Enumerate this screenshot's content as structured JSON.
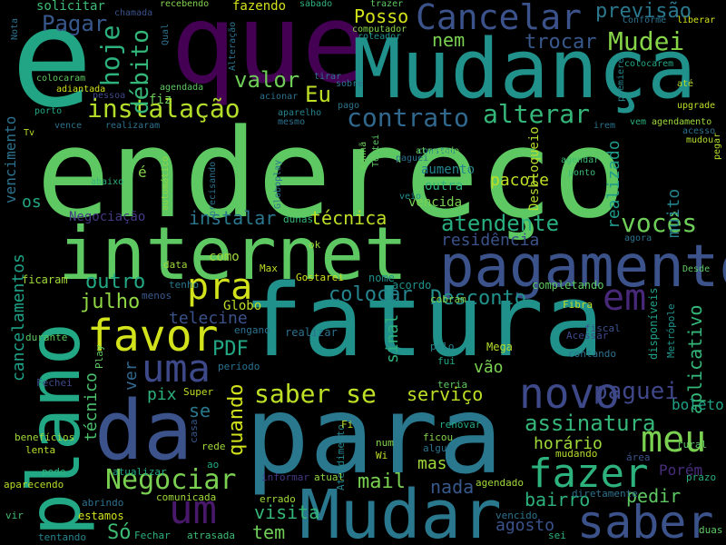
{
  "background": "#000000",
  "words": [
    {
      "text": "endereço",
      "color": "#5ec962"
    },
    {
      "text": "fatura",
      "color": "#21918c"
    },
    {
      "text": "para",
      "color": "#2a788e"
    },
    {
      "text": "que",
      "color": "#440154"
    },
    {
      "text": "e",
      "color": "#21a585"
    },
    {
      "text": "Mudança",
      "color": "#21918c"
    },
    {
      "text": "internet",
      "color": "#5ec962"
    },
    {
      "text": "plano",
      "color": "#22a884"
    },
    {
      "text": "da",
      "color": "#3b528b"
    },
    {
      "text": "pagamento",
      "color": "#3b528b"
    },
    {
      "text": "Mudar",
      "color": "#2a788e"
    },
    {
      "text": "saber",
      "color": "#3b528b"
    },
    {
      "text": "Cancelar",
      "color": "#3b528b"
    },
    {
      "text": "favor",
      "color": "#d2e21b"
    },
    {
      "text": "uma",
      "color": "#3e4989"
    },
    {
      "text": "novo",
      "color": "#3e4989"
    },
    {
      "text": "fazer",
      "color": "#2db27d"
    },
    {
      "text": "meu",
      "color": "#7ad151"
    },
    {
      "text": "um",
      "color": "#48186a"
    },
    {
      "text": "pra",
      "color": "#d2e21b"
    },
    {
      "text": "em",
      "color": "#482878"
    },
    {
      "text": "Negociar",
      "color": "#7ad151"
    },
    {
      "text": "saber se",
      "color": "#bddf26"
    },
    {
      "text": "instalação",
      "color": "#b5de2b"
    },
    {
      "text": "contrato",
      "color": "#31688e"
    },
    {
      "text": "alterar",
      "color": "#35b779"
    },
    {
      "text": "Mudei",
      "color": "#86d549"
    },
    {
      "text": "hoje",
      "color": "#2db27d"
    },
    {
      "text": "débito",
      "color": "#35b779"
    },
    {
      "text": "vocês",
      "color": "#6ece58"
    },
    {
      "text": "atendente",
      "color": "#29af7f"
    },
    {
      "text": "assinatura",
      "color": "#35b779"
    },
    {
      "text": "paguei",
      "color": "#3f4788"
    },
    {
      "text": "Pagar",
      "color": "#38588c"
    },
    {
      "text": "valor",
      "color": "#6ece58"
    },
    {
      "text": "Eu",
      "color": "#bddf26"
    },
    {
      "text": "Posso",
      "color": "#d2e21b"
    },
    {
      "text": "nem",
      "color": "#7ad151"
    },
    {
      "text": "trocar",
      "color": "#38588c"
    },
    {
      "text": "previsão",
      "color": "#2a788e"
    },
    {
      "text": "instalar",
      "color": "#2a788e"
    },
    {
      "text": "técnica",
      "color": "#bddf26"
    },
    {
      "text": "colocar",
      "color": "#25848e"
    },
    {
      "text": "Desconto",
      "color": "#21918c"
    },
    {
      "text": "outro",
      "color": "#22a884"
    },
    {
      "text": "julho",
      "color": "#8fd744"
    },
    {
      "text": "telecine",
      "color": "#3b528b"
    },
    {
      "text": "PDF",
      "color": "#22a884"
    },
    {
      "text": "quando",
      "color": "#d2e21b"
    },
    {
      "text": "serviço",
      "color": "#bddf26"
    },
    {
      "text": "vão",
      "color": "#7ad151"
    },
    {
      "text": "mail",
      "color": "#7ad151"
    },
    {
      "text": "nada",
      "color": "#38588c"
    },
    {
      "text": "mas",
      "color": "#a0da39"
    },
    {
      "text": "horário",
      "color": "#a0da39"
    },
    {
      "text": "visita",
      "color": "#35b779"
    },
    {
      "text": "tem",
      "color": "#6ece58"
    },
    {
      "text": "Só",
      "color": "#3dbc74"
    },
    {
      "text": "bairro",
      "color": "#2db27d"
    },
    {
      "text": "pedir",
      "color": "#5ec962"
    },
    {
      "text": "agosto",
      "color": "#3b528b"
    },
    {
      "text": "residência",
      "color": "#3b528b"
    },
    {
      "text": "realizado",
      "color": "#1f9a8a"
    },
    {
      "text": "pacote",
      "color": "#bddf26"
    },
    {
      "text": "muito",
      "color": "#25848e"
    },
    {
      "text": "aplicativo",
      "color": "#35b779"
    },
    {
      "text": "Porém",
      "color": "#472d7b"
    },
    {
      "text": "cancelamentos",
      "color": "#1fa187"
    },
    {
      "text": "vencimento",
      "color": "#2c728e"
    },
    {
      "text": "técnico",
      "color": "#4ac16d"
    },
    {
      "text": "ver",
      "color": "#31688e"
    },
    {
      "text": "pix",
      "color": "#2db27d"
    },
    {
      "text": "se",
      "color": "#2a788e"
    },
    {
      "text": "como",
      "color": "#9fda3a"
    },
    {
      "text": "sinal",
      "color": "#2db27d"
    },
    {
      "text": "boleto",
      "color": "#1fa187"
    },
    {
      "text": "Globo",
      "color": "#bddf26"
    },
    {
      "text": "fiz",
      "color": "#6ece58"
    },
    {
      "text": "é",
      "color": "#84d44b"
    },
    {
      "text": "os",
      "color": "#22a884"
    },
    {
      "text": "solicitar",
      "color": "#3dbc74"
    },
    {
      "text": "fazendo",
      "color": "#d2e21b"
    },
    {
      "text": "aumento",
      "color": "#25848e"
    },
    {
      "text": "outra",
      "color": "#2db27d"
    },
    {
      "text": "vencida",
      "color": "#7ad151"
    },
    {
      "text": "Desbloqueio",
      "color": "#b5de2b"
    },
    {
      "text": "Negociação",
      "color": "#443983"
    },
    {
      "text": "ficaram",
      "color": "#a0da39"
    },
    {
      "text": "nome",
      "color": "#21918c"
    },
    {
      "text": "acordo",
      "color": "#21918c"
    },
    {
      "text": "completando",
      "color": "#5ec962"
    },
    {
      "text": "cobram",
      "color": "#84d44b"
    },
    {
      "text": "Fibra",
      "color": "#bddf26"
    },
    {
      "text": "disponíveis",
      "color": "#1fa187"
    },
    {
      "text": "Metrópole",
      "color": "#21918c"
    },
    {
      "text": "fiscal",
      "color": "#3b528b"
    },
    {
      "text": "Acessar",
      "color": "#3e4989"
    },
    {
      "text": "contando",
      "color": "#2c728e"
    },
    {
      "text": "Mega",
      "color": "#b5de2b"
    },
    {
      "text": "pelo",
      "color": "#25848e"
    },
    {
      "text": "fui",
      "color": "#22a884"
    },
    {
      "text": "teria",
      "color": "#5ec962"
    },
    {
      "text": "Atendimento",
      "color": "#25848e"
    },
    {
      "text": "renovar",
      "color": "#22a884"
    },
    {
      "text": "ficou",
      "color": "#84d44b"
    },
    {
      "text": "algum",
      "color": "#2c728e"
    },
    {
      "text": "num",
      "color": "#84d44b"
    },
    {
      "text": "Wi",
      "color": "#bddf26"
    },
    {
      "text": "Fi",
      "color": "#bddf26"
    },
    {
      "text": "mudando",
      "color": "#b5de2b"
    },
    {
      "text": "área",
      "color": "#3b528b"
    },
    {
      "text": "prazo",
      "color": "#29af7f"
    },
    {
      "text": "rural",
      "color": "#5ec962"
    },
    {
      "text": "diretamente",
      "color": "#2c728e"
    },
    {
      "text": "agendado",
      "color": "#a0da39"
    },
    {
      "text": "sei",
      "color": "#2db27d"
    },
    {
      "text": "vencido",
      "color": "#2c728e"
    },
    {
      "text": "duas",
      "color": "#5ec962"
    },
    {
      "text": "atualizar",
      "color": "#22a884"
    },
    {
      "text": "informar",
      "color": "#443983"
    },
    {
      "text": "atual",
      "color": "#8fd744"
    },
    {
      "text": "errado",
      "color": "#a0da39"
    },
    {
      "text": "comunicada",
      "color": "#9fda3a"
    },
    {
      "text": "abrindo",
      "color": "#2c728e"
    },
    {
      "text": "Fechar",
      "color": "#2db27d"
    },
    {
      "text": "atrasada",
      "color": "#3dbc74"
    },
    {
      "text": "estamos",
      "color": "#d2e21b"
    },
    {
      "text": "vir",
      "color": "#3dbc74"
    },
    {
      "text": "tentando",
      "color": "#25848e"
    },
    {
      "text": "aparecendo",
      "color": "#b5de2b"
    },
    {
      "text": "pode",
      "color": "#2db27d"
    },
    {
      "text": "lenta",
      "color": "#b5de2b"
    },
    {
      "text": "benefícios",
      "color": "#a0da39"
    },
    {
      "text": "durante",
      "color": "#5ec962"
    },
    {
      "text": "Fechei",
      "color": "#3e4989"
    },
    {
      "text": "Play",
      "color": "#5ec962"
    },
    {
      "text": "Super",
      "color": "#bddf26"
    },
    {
      "text": "período",
      "color": "#2c728e"
    },
    {
      "text": "engano",
      "color": "#2c728e"
    },
    {
      "text": "Max",
      "color": "#bddf26"
    },
    {
      "text": "Gostarei",
      "color": "#d2e21b"
    },
    {
      "text": "tenho",
      "color": "#2a788e"
    },
    {
      "text": "menos",
      "color": "#38588c"
    },
    {
      "text": "data",
      "color": "#9fda3a"
    },
    {
      "text": "ok",
      "color": "#9fda3a"
    },
    {
      "text": "dunas",
      "color": "#35b779"
    },
    {
      "text": "casa",
      "color": "#38588c"
    },
    {
      "text": "rede",
      "color": "#9fda3a"
    },
    {
      "text": "ao",
      "color": "#22a884"
    },
    {
      "text": "realizar",
      "color": "#2c728e"
    },
    {
      "text": "automático",
      "color": "#8fd744"
    },
    {
      "text": "precisando",
      "color": "#2c728e"
    },
    {
      "text": "Globoplay",
      "color": "#2c728e"
    },
    {
      "text": "manhã",
      "color": "#6ece58"
    },
    {
      "text": "Tentei",
      "color": "#5ec962"
    },
    {
      "text": "constou",
      "color": "#25848e"
    },
    {
      "text": "paguei",
      "color": "#2c728e"
    },
    {
      "text": "veio",
      "color": "#21918c"
    },
    {
      "text": "atrasado",
      "color": "#6ece58"
    },
    {
      "text": "agendar",
      "color": "#3dbc74"
    },
    {
      "text": "ponto",
      "color": "#3dbc74"
    },
    {
      "text": "agora",
      "color": "#2c728e"
    },
    {
      "text": "Desde",
      "color": "#5ec962"
    },
    {
      "text": "pegar",
      "color": "#b5de2b"
    },
    {
      "text": "mudou",
      "color": "#b5de2b"
    },
    {
      "text": "acesso",
      "color": "#2c728e"
    },
    {
      "text": "agendamento",
      "color": "#9fda3a"
    },
    {
      "text": "vem",
      "color": "#2db27d"
    },
    {
      "text": "upgrade",
      "color": "#bddf26"
    },
    {
      "text": "até",
      "color": "#b5de2b"
    },
    {
      "text": "colocarem",
      "color": "#22a884"
    },
    {
      "text": "liberar",
      "color": "#d2e21b"
    },
    {
      "text": "Conforme",
      "color": "#2c728e"
    },
    {
      "text": "premiere",
      "color": "#25848e"
    },
    {
      "text": "irem",
      "color": "#2c728e"
    },
    {
      "text": "roteador",
      "color": "#21918c"
    },
    {
      "text": "computador",
      "color": "#84d44b"
    },
    {
      "text": "trazer",
      "color": "#5ec962"
    },
    {
      "text": "sábado",
      "color": "#2db27d"
    },
    {
      "text": "recebendo",
      "color": "#84d44b"
    },
    {
      "text": "chamada",
      "color": "#3b528b"
    },
    {
      "text": "Qual",
      "color": "#2c728e"
    },
    {
      "text": "Alteração",
      "color": "#2c728e"
    },
    {
      "text": "Nota",
      "color": "#2c728e"
    },
    {
      "text": "colocaram",
      "color": "#5ec962"
    },
    {
      "text": "adiantada",
      "color": "#d2e21b"
    },
    {
      "text": "agendada",
      "color": "#5ec962"
    },
    {
      "text": "porto",
      "color": "#22a884"
    },
    {
      "text": "vence",
      "color": "#2c728e"
    },
    {
      "text": "realizaram",
      "color": "#2c728e"
    },
    {
      "text": "acionar",
      "color": "#2c728e"
    },
    {
      "text": "aparelho",
      "color": "#25848e"
    },
    {
      "text": "mesmo",
      "color": "#2c728e"
    },
    {
      "text": "tirar",
      "color": "#2c728e"
    },
    {
      "text": "sobre",
      "color": "#2c728e"
    },
    {
      "text": "pago",
      "color": "#2c728e"
    },
    {
      "text": "Tv",
      "color": "#b5de2b"
    },
    {
      "text": "abaixo",
      "color": "#2db27d"
    },
    {
      "text": "pessoa",
      "color": "#3e4989"
    }
  ]
}
